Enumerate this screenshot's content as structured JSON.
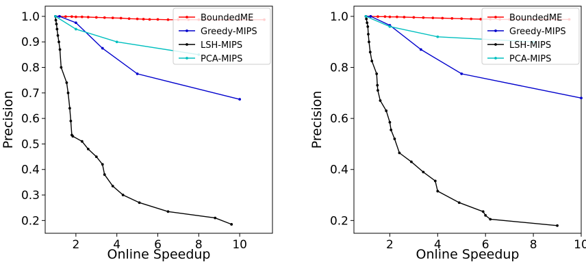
{
  "chart_data": [
    {
      "type": "line",
      "xlabel": "Online Speedup",
      "ylabel": "Precision",
      "xlim": [
        0.5,
        11.6
      ],
      "ylim": [
        0.15,
        1.04
      ],
      "xticks": [
        2,
        4,
        6,
        8,
        10
      ],
      "yticks": [
        0.2,
        0.3,
        0.4,
        0.5,
        0.6,
        0.7,
        0.8,
        0.9,
        1.0
      ],
      "ytick_labels": [
        "0.2",
        "0.3",
        "0.4",
        "0.5",
        "0.6",
        "0.7",
        "0.8",
        "0.9",
        "1.0"
      ],
      "grid": false,
      "legend": "top-right",
      "series": [
        {
          "name": "BoundedME",
          "color": "#ff0000",
          "x": [
            1.0,
            1.2,
            1.5,
            1.8,
            2.0,
            2.3,
            2.6,
            3.0,
            3.4,
            3.8,
            4.2,
            4.6,
            5.0,
            5.3,
            5.6,
            6.0,
            6.5,
            7.0,
            7.5,
            8.0,
            8.5,
            9.0,
            9.5,
            10.0,
            10.5,
            11.2
          ],
          "y": [
            1.0,
            1.0,
            0.999,
            0.999,
            0.998,
            0.998,
            0.997,
            0.996,
            0.995,
            0.994,
            0.993,
            0.991,
            0.99,
            0.989,
            0.988,
            0.988,
            0.987,
            0.987,
            0.987,
            0.987,
            0.987,
            0.987,
            0.987,
            0.987,
            0.987,
            0.987
          ]
        },
        {
          "name": "Greedy-MIPS",
          "color": "#0000cc",
          "x": [
            1.0,
            1.2,
            2.0,
            3.3,
            5.0,
            10.0
          ],
          "y": [
            1.0,
            1.0,
            0.975,
            0.875,
            0.775,
            0.675
          ]
        },
        {
          "name": "LSH-MIPS",
          "color": "#000000",
          "x": [
            1.0,
            1.02,
            1.05,
            1.08,
            1.12,
            1.17,
            1.22,
            1.28,
            1.55,
            1.62,
            1.7,
            1.75,
            1.8,
            1.85,
            2.3,
            2.6,
            3.0,
            3.3,
            3.4,
            3.8,
            4.3,
            5.1,
            6.5,
            8.8,
            9.6
          ],
          "y": [
            1.0,
            0.985,
            0.97,
            0.95,
            0.925,
            0.9,
            0.87,
            0.8,
            0.74,
            0.7,
            0.64,
            0.59,
            0.535,
            0.53,
            0.51,
            0.48,
            0.45,
            0.42,
            0.38,
            0.335,
            0.3,
            0.27,
            0.235,
            0.21,
            0.185
          ]
        },
        {
          "name": "PCA-MIPS",
          "color": "#00bfbf",
          "x": [
            1.0,
            2.0,
            4.0,
            8.0
          ],
          "y": [
            1.0,
            0.95,
            0.9,
            0.85
          ]
        }
      ]
    },
    {
      "type": "line",
      "xlabel": "Online Speedup",
      "ylabel": "Precision",
      "xlim": [
        0.5,
        10.0
      ],
      "ylim": [
        0.15,
        1.04
      ],
      "xticks": [
        2,
        4,
        6,
        8,
        10
      ],
      "yticks": [
        0.2,
        0.4,
        0.6,
        0.8,
        1.0
      ],
      "ytick_labels": [
        "0.2",
        "0.4",
        "0.6",
        "0.8",
        "1.0"
      ],
      "grid": false,
      "legend": "top-right",
      "series": [
        {
          "name": "BoundedME",
          "color": "#ff0000",
          "x": [
            1.0,
            1.2,
            1.5,
            1.8,
            2.0,
            2.3,
            2.6,
            3.0,
            3.4,
            3.8,
            4.2,
            4.6,
            5.0,
            5.4,
            5.8,
            6.2,
            6.6,
            7.0,
            7.5,
            8.0,
            8.5,
            9.0,
            9.5
          ],
          "y": [
            1.0,
            1.0,
            0.999,
            0.999,
            0.998,
            0.998,
            0.997,
            0.996,
            0.995,
            0.994,
            0.993,
            0.992,
            0.991,
            0.99,
            0.989,
            0.989,
            0.988,
            0.988,
            0.988,
            0.988,
            0.988,
            0.988,
            0.988
          ]
        },
        {
          "name": "Greedy-MIPS",
          "color": "#0000cc",
          "x": [
            1.0,
            1.2,
            2.0,
            3.3,
            5.0,
            10.0
          ],
          "y": [
            1.0,
            1.0,
            0.965,
            0.87,
            0.775,
            0.68
          ]
        },
        {
          "name": "LSH-MIPS",
          "color": "#000000",
          "x": [
            1.0,
            1.02,
            1.05,
            1.08,
            1.1,
            1.13,
            1.18,
            1.25,
            1.45,
            1.48,
            1.5,
            1.6,
            1.85,
            2.0,
            2.05,
            2.2,
            2.4,
            2.9,
            3.4,
            3.9,
            4.0,
            4.9,
            5.9,
            6.0,
            6.2,
            9.0
          ],
          "y": [
            1.0,
            0.99,
            0.975,
            0.96,
            0.93,
            0.9,
            0.86,
            0.825,
            0.775,
            0.73,
            0.71,
            0.67,
            0.63,
            0.585,
            0.555,
            0.52,
            0.465,
            0.43,
            0.39,
            0.355,
            0.315,
            0.27,
            0.235,
            0.22,
            0.205,
            0.18
          ]
        },
        {
          "name": "PCA-MIPS",
          "color": "#00bfbf",
          "x": [
            1.0,
            2.0,
            4.0,
            8.0
          ],
          "y": [
            1.0,
            0.96,
            0.92,
            0.9
          ]
        }
      ]
    }
  ]
}
